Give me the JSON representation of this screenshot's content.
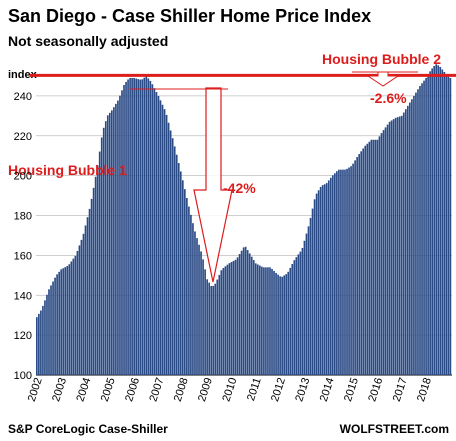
{
  "chart_data": {
    "type": "bar",
    "title": "San Diego - Case Shiller Home Price Index",
    "subtitle": "Not seasonally adjusted",
    "ylabel": "index",
    "ylim": [
      100,
      255
    ],
    "yticks": [
      100,
      120,
      140,
      160,
      180,
      200,
      220,
      240
    ],
    "xlim": [
      2002.0,
      2019.1
    ],
    "xticks": [
      "2002",
      "2003",
      "2004",
      "2005",
      "2006",
      "2007",
      "2008",
      "2009",
      "2010",
      "2011",
      "2012",
      "2013",
      "2014",
      "2015",
      "2016",
      "2017",
      "2018"
    ],
    "grid": true,
    "bar_color": "#2b4b86",
    "reference_line": {
      "value": 250.3,
      "color": "#dd1c1c"
    },
    "series": [
      {
        "anchors": [
          [
            2002.0,
            129
          ],
          [
            2002.2,
            133
          ],
          [
            2002.5,
            143
          ],
          [
            2002.8,
            150
          ],
          [
            2003.0,
            153
          ],
          [
            2003.3,
            155
          ],
          [
            2003.6,
            160
          ],
          [
            2003.9,
            170
          ],
          [
            2004.2,
            185
          ],
          [
            2004.5,
            205
          ],
          [
            2004.7,
            222
          ],
          [
            2004.9,
            230
          ],
          [
            2005.1,
            233
          ],
          [
            2005.35,
            238
          ],
          [
            2005.6,
            246
          ],
          [
            2005.8,
            249
          ],
          [
            2006.0,
            249
          ],
          [
            2006.3,
            248
          ],
          [
            2006.5,
            250
          ],
          [
            2006.7,
            247
          ],
          [
            2007.0,
            240
          ],
          [
            2007.3,
            232
          ],
          [
            2007.6,
            218
          ],
          [
            2007.9,
            203
          ],
          [
            2008.2,
            187
          ],
          [
            2008.5,
            172
          ],
          [
            2008.8,
            160
          ],
          [
            2009.0,
            148
          ],
          [
            2009.2,
            144
          ],
          [
            2009.35,
            146
          ],
          [
            2009.6,
            153
          ],
          [
            2009.9,
            156
          ],
          [
            2010.2,
            158
          ],
          [
            2010.45,
            163
          ],
          [
            2010.55,
            165
          ],
          [
            2010.8,
            160
          ],
          [
            2011.0,
            156
          ],
          [
            2011.3,
            154
          ],
          [
            2011.6,
            154
          ],
          [
            2011.85,
            151
          ],
          [
            2012.05,
            149
          ],
          [
            2012.3,
            151
          ],
          [
            2012.6,
            158
          ],
          [
            2012.9,
            163
          ],
          [
            2013.2,
            176
          ],
          [
            2013.45,
            190
          ],
          [
            2013.7,
            195
          ],
          [
            2013.9,
            196
          ],
          [
            2014.15,
            200
          ],
          [
            2014.4,
            203
          ],
          [
            2014.7,
            203
          ],
          [
            2014.95,
            205
          ],
          [
            2015.2,
            210
          ],
          [
            2015.5,
            215
          ],
          [
            2015.75,
            218
          ],
          [
            2016.0,
            218
          ],
          [
            2016.2,
            222
          ],
          [
            2016.5,
            227
          ],
          [
            2016.75,
            229
          ],
          [
            2017.0,
            230
          ],
          [
            2017.25,
            235
          ],
          [
            2017.5,
            240
          ],
          [
            2017.75,
            245
          ],
          [
            2018.0,
            249
          ],
          [
            2018.2,
            253
          ],
          [
            2018.4,
            256
          ],
          [
            2018.55,
            255
          ],
          [
            2018.75,
            252
          ],
          [
            2019.0,
            249
          ]
        ]
      }
    ],
    "annotations": [
      {
        "text": "Housing Bubble 1",
        "color": "#dd1c1c"
      },
      {
        "text": "Housing Bubble 2",
        "color": "#dd1c1c"
      },
      {
        "text": "-42%",
        "color": "#dd1c1c"
      },
      {
        "text": "-2.6%",
        "color": "#dd1c1c"
      }
    ],
    "footer_left": "S&P CoreLogic Case-Shiller",
    "footer_right": "WOLFSTREET.com"
  }
}
